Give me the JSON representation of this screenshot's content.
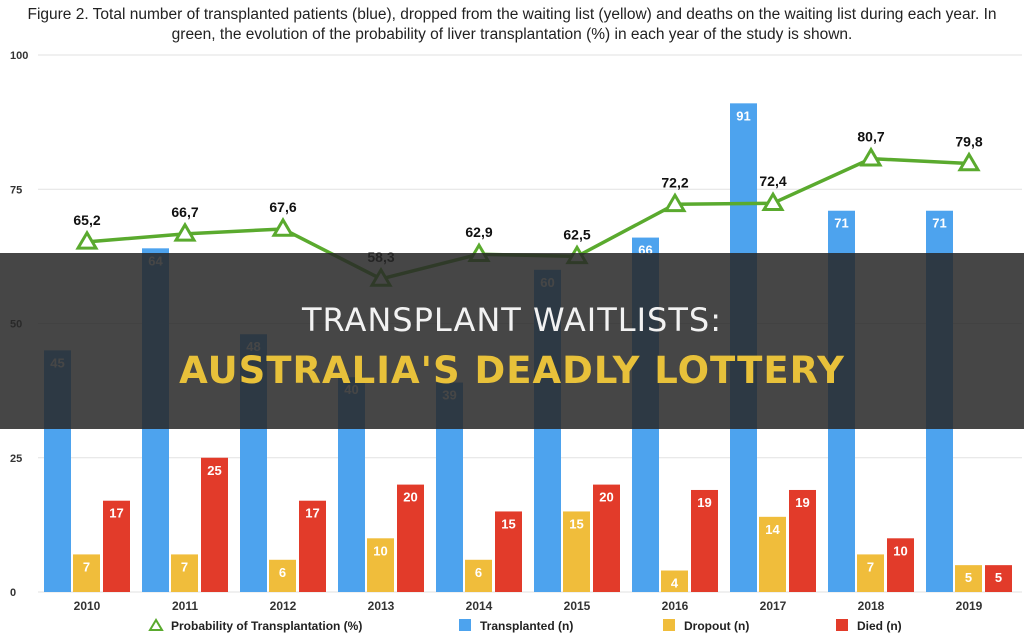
{
  "caption": {
    "line1": "Figure 2. Total number of transplanted patients (blue), dropped from the waiting list (yellow) and deaths on the waiting list during each year. In",
    "line2": "green, the evolution of the probability of liver transplantation (%) in each year of the study is shown."
  },
  "overlay": {
    "line1": "TRANSPLANT WAITLISTS:",
    "line2": "AUSTRALIA'S DEADLY LOTTERY"
  },
  "colors": {
    "transplanted": "#4da3ee",
    "dropout": "#f0bd3b",
    "died": "#e23b2a",
    "probability": "#5aaa2e",
    "grid": "#e2e2e2"
  },
  "chart_data": {
    "type": "bar",
    "categories": [
      "2010",
      "2011",
      "2012",
      "2013",
      "2014",
      "2015",
      "2016",
      "2017",
      "2018",
      "2019"
    ],
    "ylim": [
      0,
      100
    ],
    "yticks": [
      0,
      25,
      50,
      75,
      100
    ],
    "grid": true,
    "legend_position": "bottom",
    "series": [
      {
        "name": "Transplanted (n)",
        "type": "bar",
        "values": [
          45,
          64,
          48,
          40,
          39,
          60,
          66,
          91,
          71,
          71
        ]
      },
      {
        "name": "Dropout (n)",
        "type": "bar",
        "values": [
          7,
          7,
          6,
          10,
          6,
          15,
          4,
          14,
          7,
          5
        ]
      },
      {
        "name": "Died (n)",
        "type": "bar",
        "values": [
          17,
          25,
          17,
          20,
          15,
          20,
          19,
          19,
          10,
          5
        ]
      },
      {
        "name": "Probability of Transplantation (%)",
        "type": "line",
        "labels": [
          "65,2",
          "66,7",
          "67,6",
          "58,3",
          "62,9",
          "62,5",
          "72,2",
          "72,4",
          "80,7",
          "79,8"
        ],
        "values": [
          65.2,
          66.7,
          67.6,
          58.3,
          62.9,
          62.5,
          72.2,
          72.4,
          80.7,
          79.8
        ]
      }
    ]
  }
}
